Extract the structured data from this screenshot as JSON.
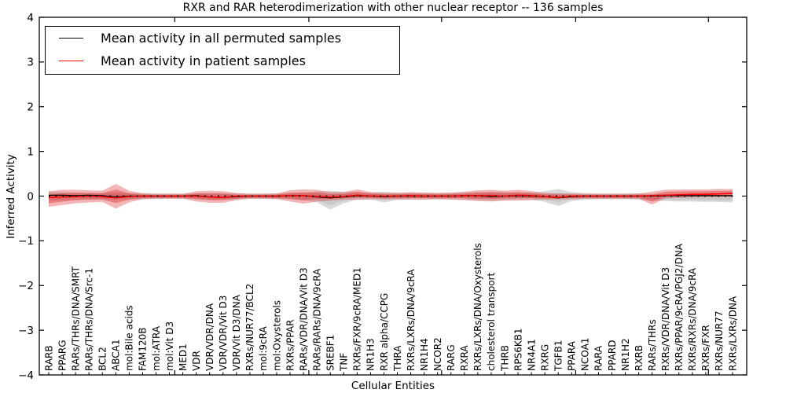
{
  "chart_data": {
    "type": "line",
    "title": "RXR and RAR heterodimerization with other nuclear receptor -- 136 samples",
    "xlabel": "Cellular Entities",
    "ylabel": "Inferred Activity",
    "ylim": [
      -4,
      4
    ],
    "yticks": [
      -4,
      -3,
      -2,
      -1,
      0,
      1,
      2,
      3,
      4
    ],
    "ytick_labels": [
      "−4",
      "−3",
      "−2",
      "−1",
      "0",
      "1",
      "2",
      "3",
      "4"
    ],
    "xticks_at": [
      9.4,
      19.4,
      29.3,
      39.3,
      49.2
    ],
    "grid": false,
    "legend_position": "upper left",
    "categories": [
      "RARB",
      "PPARG",
      "RARs/THRs/DNA/SMRT",
      "RARs/THRs/DNA/Src-1",
      "BCL2",
      "ABCA1",
      "mol:Bile acids",
      "FAM120B",
      "mol:ATRA",
      "mol:Vit D3",
      "MED1",
      "VDR",
      "VDR/VDR/DNA",
      "VDR/VDR/Vit D3",
      "VDR/Vit D3/DNA",
      "RXRs/NUR77/BCL2",
      "mol:9cRA",
      "mol:Oxysterols",
      "RXRs/PPAR",
      "RARs/VDR/DNA/Vit D3",
      "RARs/RARs/DNA/9cRA",
      "SREBF1",
      "TNF",
      "RXRs/FXR/9cRA/MED1",
      "NR1H3",
      "RXR alpha/CCPG",
      "THRA",
      "RXRs/LXRs/DNA/9cRA",
      "NR1H4",
      "NCOR2",
      "RARG",
      "RXRA",
      "RXRs/LXRs/DNA/Oxysterols",
      "cholesterol transport",
      "THRB",
      "RPS6KB1",
      "NR4A1",
      "RXRG",
      "TGFB1",
      "PPARA",
      "NCOA1",
      "RARA",
      "PPARD",
      "NR1H2",
      "RXRB",
      "RARs/THRs",
      "RXRs/VDR/DNA/Vit D3",
      "RXRs/PPAR/9cRA/PGJ2/DNA",
      "RXRs/RXRs/DNA/9cRA",
      "RXRs/FXR",
      "RXRs/NUR77",
      "RXRs/LXRs/DNA"
    ],
    "series": [
      {
        "name": "Mean activity in all permuted samples",
        "color": "#000000",
        "width": 1.3,
        "values": [
          0.02,
          0.02,
          0.01,
          0.02,
          0.01,
          -0.02,
          0.0,
          0.0,
          0.0,
          0.0,
          0.0,
          0.01,
          -0.02,
          -0.03,
          -0.01,
          0.0,
          0.0,
          0.0,
          0.01,
          0.01,
          -0.02,
          -0.04,
          -0.02,
          0.01,
          0.0,
          -0.01,
          0.0,
          0.0,
          0.0,
          0.0,
          0.0,
          0.01,
          0.01,
          -0.01,
          0.0,
          0.01,
          0.0,
          -0.01,
          -0.04,
          -0.01,
          0.0,
          0.0,
          0.0,
          0.0,
          0.0,
          0.0,
          0.01,
          0.01,
          0.01,
          0.01,
          0.01,
          0.01
        ]
      },
      {
        "name": "Mean activity in patient samples",
        "color": "#ff0000",
        "width": 1.6,
        "values": [
          -0.03,
          -0.02,
          -0.01,
          0.0,
          -0.01,
          -0.04,
          -0.01,
          0.0,
          0.0,
          0.0,
          0.0,
          0.0,
          -0.02,
          -0.03,
          0.0,
          0.0,
          0.0,
          0.0,
          0.01,
          0.01,
          -0.01,
          -0.02,
          -0.01,
          0.02,
          0.0,
          0.0,
          0.0,
          0.01,
          0.0,
          0.0,
          0.0,
          0.01,
          0.01,
          0.01,
          0.0,
          0.02,
          0.01,
          -0.01,
          -0.03,
          0.0,
          0.0,
          0.0,
          0.0,
          0.0,
          0.0,
          0.01,
          0.02,
          0.03,
          0.04,
          0.04,
          0.05,
          0.06
        ]
      }
    ],
    "bands": [
      {
        "name": "permuted-samples-std-band",
        "color": "#787878",
        "opacity": 0.28,
        "inner_scale": 0.55,
        "inner_opacity": 0.16,
        "top": [
          0.1,
          0.09,
          0.08,
          0.07,
          0.07,
          0.08,
          0.07,
          0.07,
          0.06,
          0.06,
          0.06,
          0.06,
          0.07,
          0.07,
          0.06,
          0.06,
          0.06,
          0.06,
          0.07,
          0.08,
          0.1,
          0.12,
          0.1,
          0.08,
          0.08,
          0.1,
          0.08,
          0.07,
          0.07,
          0.07,
          0.07,
          0.08,
          0.09,
          0.1,
          0.09,
          0.08,
          0.08,
          0.11,
          0.16,
          0.09,
          0.07,
          0.06,
          0.06,
          0.06,
          0.06,
          0.05,
          0.04,
          0.03,
          0.03,
          0.03,
          0.03,
          0.03
        ],
        "bottom": [
          -0.1,
          -0.09,
          -0.08,
          -0.07,
          -0.07,
          -0.08,
          -0.07,
          -0.07,
          -0.06,
          -0.06,
          -0.06,
          -0.06,
          -0.08,
          -0.08,
          -0.07,
          -0.06,
          -0.06,
          -0.06,
          -0.07,
          -0.09,
          -0.14,
          -0.3,
          -0.16,
          -0.08,
          -0.08,
          -0.14,
          -0.09,
          -0.07,
          -0.07,
          -0.07,
          -0.07,
          -0.08,
          -0.09,
          -0.1,
          -0.09,
          -0.08,
          -0.08,
          -0.13,
          -0.22,
          -0.11,
          -0.08,
          -0.07,
          -0.07,
          -0.07,
          -0.08,
          -0.1,
          -0.11,
          -0.12,
          -0.12,
          -0.13,
          -0.13,
          -0.14
        ]
      },
      {
        "name": "patient-samples-std-band",
        "color": "#dd2c2c",
        "opacity": 0.35,
        "inner_scale": 0.55,
        "inner_opacity": 0.4,
        "top": [
          0.11,
          0.14,
          0.14,
          0.13,
          0.12,
          0.27,
          0.12,
          0.06,
          0.05,
          0.05,
          0.05,
          0.11,
          0.12,
          0.11,
          0.07,
          0.05,
          0.05,
          0.06,
          0.13,
          0.15,
          0.14,
          0.09,
          0.09,
          0.15,
          0.09,
          0.07,
          0.07,
          0.09,
          0.08,
          0.07,
          0.08,
          0.1,
          0.13,
          0.14,
          0.12,
          0.14,
          0.11,
          0.07,
          0.06,
          0.06,
          0.05,
          0.05,
          0.05,
          0.05,
          0.06,
          0.1,
          0.14,
          0.15,
          0.15,
          0.15,
          0.16,
          0.16
        ],
        "bottom": [
          -0.24,
          -0.2,
          -0.16,
          -0.14,
          -0.13,
          -0.28,
          -0.14,
          -0.07,
          -0.06,
          -0.06,
          -0.06,
          -0.12,
          -0.15,
          -0.15,
          -0.09,
          -0.06,
          -0.06,
          -0.07,
          -0.12,
          -0.17,
          -0.12,
          -0.1,
          -0.08,
          -0.08,
          -0.07,
          -0.07,
          -0.07,
          -0.08,
          -0.08,
          -0.07,
          -0.08,
          -0.09,
          -0.11,
          -0.12,
          -0.1,
          -0.1,
          -0.09,
          -0.08,
          -0.07,
          -0.07,
          -0.06,
          -0.06,
          -0.06,
          -0.06,
          -0.06,
          -0.19,
          -0.05,
          -0.04,
          -0.03,
          -0.02,
          -0.02,
          -0.02
        ]
      }
    ],
    "zero_line": {
      "value": 0,
      "style": "dotted",
      "color": "#000000"
    }
  },
  "legend": {
    "items": [
      {
        "label": "Mean activity in all permuted samples",
        "color": "#000000"
      },
      {
        "label": "Mean activity in patient samples",
        "color": "#ff0000"
      }
    ]
  }
}
